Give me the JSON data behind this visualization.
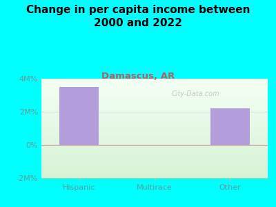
{
  "title": "Change in per capita income between\n2000 and 2022",
  "subtitle": "Damascus, AR",
  "categories": [
    "Hispanic",
    "Multirace",
    "Other"
  ],
  "values": [
    3500000,
    0,
    2200000
  ],
  "bar_color": "#b39ddb",
  "background_color": "#00FFFF",
  "title_color": "#000000",
  "subtitle_color": "#b06060",
  "tick_color": "#669999",
  "ylim": [
    -2000000,
    4000000
  ],
  "yticks": [
    -2000000,
    0,
    2000000,
    4000000
  ],
  "ytick_labels": [
    "-2M%",
    "0%",
    "2M%",
    "4M%"
  ],
  "watermark": "City-Data.com",
  "title_fontsize": 11,
  "subtitle_fontsize": 9.5,
  "tick_fontsize": 8
}
